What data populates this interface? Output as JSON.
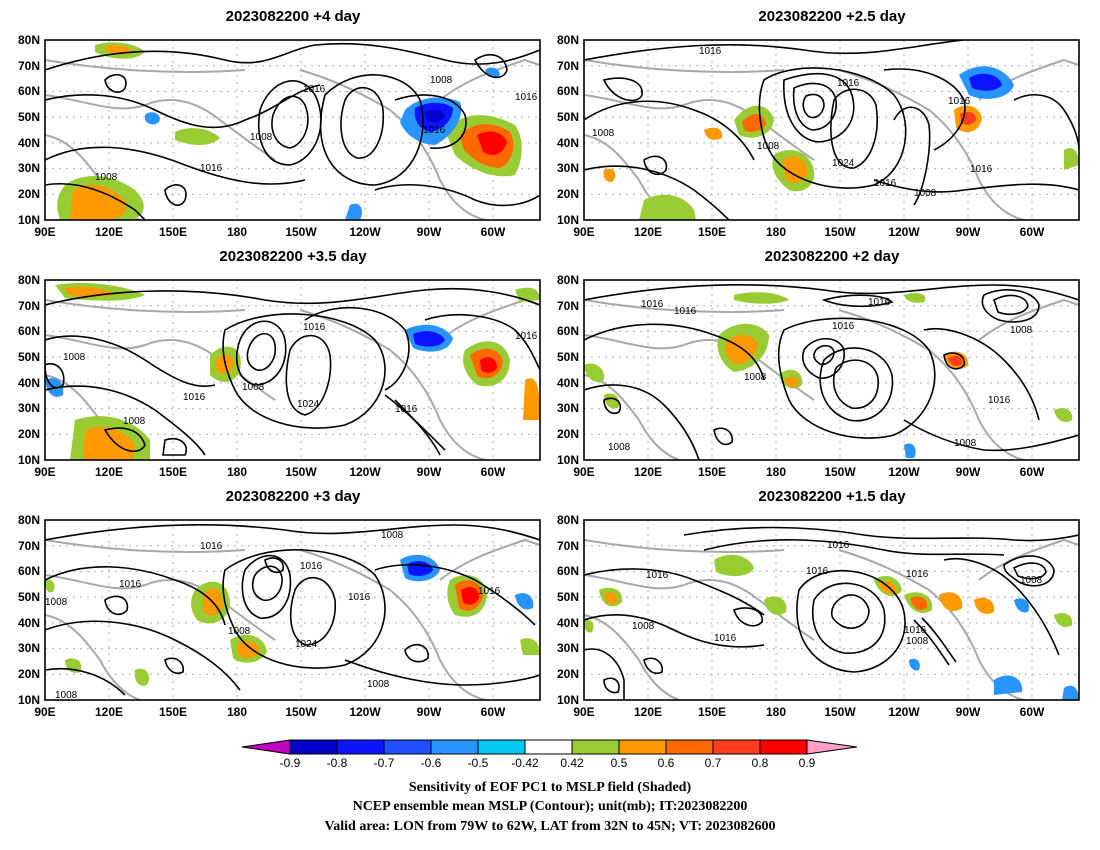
{
  "panels": [
    {
      "title": "2023082200  +4  day",
      "labels": [
        "1008",
        "1016",
        "1016",
        "1008",
        "1016",
        "1008",
        "1016"
      ]
    },
    {
      "title": "2023082200  +2.5  day",
      "labels": [
        "1016",
        "1008",
        "1016",
        "1008",
        "1016",
        "1024",
        "1016",
        "1008",
        "1016"
      ]
    },
    {
      "title": "2023082200  +3.5  day",
      "labels": [
        "1008",
        "1016",
        "1016",
        "1008",
        "1024",
        "1016",
        "1008",
        "1016"
      ]
    },
    {
      "title": "2023082200  +2  day",
      "labels": [
        "1016",
        "1016",
        "1016",
        "1016",
        "1008",
        "1008",
        "1008",
        "1016",
        "1008"
      ]
    },
    {
      "title": "2023082200  +3  day",
      "labels": [
        "1016",
        "1008",
        "1016",
        "1016",
        "1008",
        "1016",
        "1024",
        "1016",
        "1008",
        "1008",
        "1008"
      ]
    },
    {
      "title": "2023082200  +1.5  day",
      "labels": [
        "1016",
        "1016",
        "1016",
        "1016",
        "1008",
        "1016",
        "1016",
        "1008",
        "1008"
      ]
    }
  ],
  "lat_ticks": [
    "80N",
    "70N",
    "60N",
    "50N",
    "40N",
    "30N",
    "20N",
    "10N"
  ],
  "lon_ticks": [
    "90E",
    "120E",
    "150E",
    "180",
    "150W",
    "120W",
    "90W",
    "60W"
  ],
  "colorbar": {
    "labels": [
      "-0.9",
      "-0.8",
      "-0.7",
      "-0.6",
      "-0.5",
      "-0.42",
      "0.42",
      "0.5",
      "0.6",
      "0.7",
      "0.8",
      "0.9"
    ],
    "colors": [
      "#c000c0",
      "#0000c8",
      "#0a14ff",
      "#1e50ff",
      "#2894ff",
      "#00c8f0",
      "#ffffff",
      "#99cc33",
      "#ff9900",
      "#ff6a00",
      "#ff3c1e",
      "#ff0000",
      "#ffa0c8"
    ]
  },
  "caption": {
    "line1": "Sensitivity of EOF PC1 to MSLP field (Shaded)",
    "line2": "NCEP ensemble mean MSLP (Contour); unit(mb); IT:2023082200",
    "line3": "Valid area: LON from 79W to 62W, LAT from 32N to 45N; VT: 2023082600"
  }
}
